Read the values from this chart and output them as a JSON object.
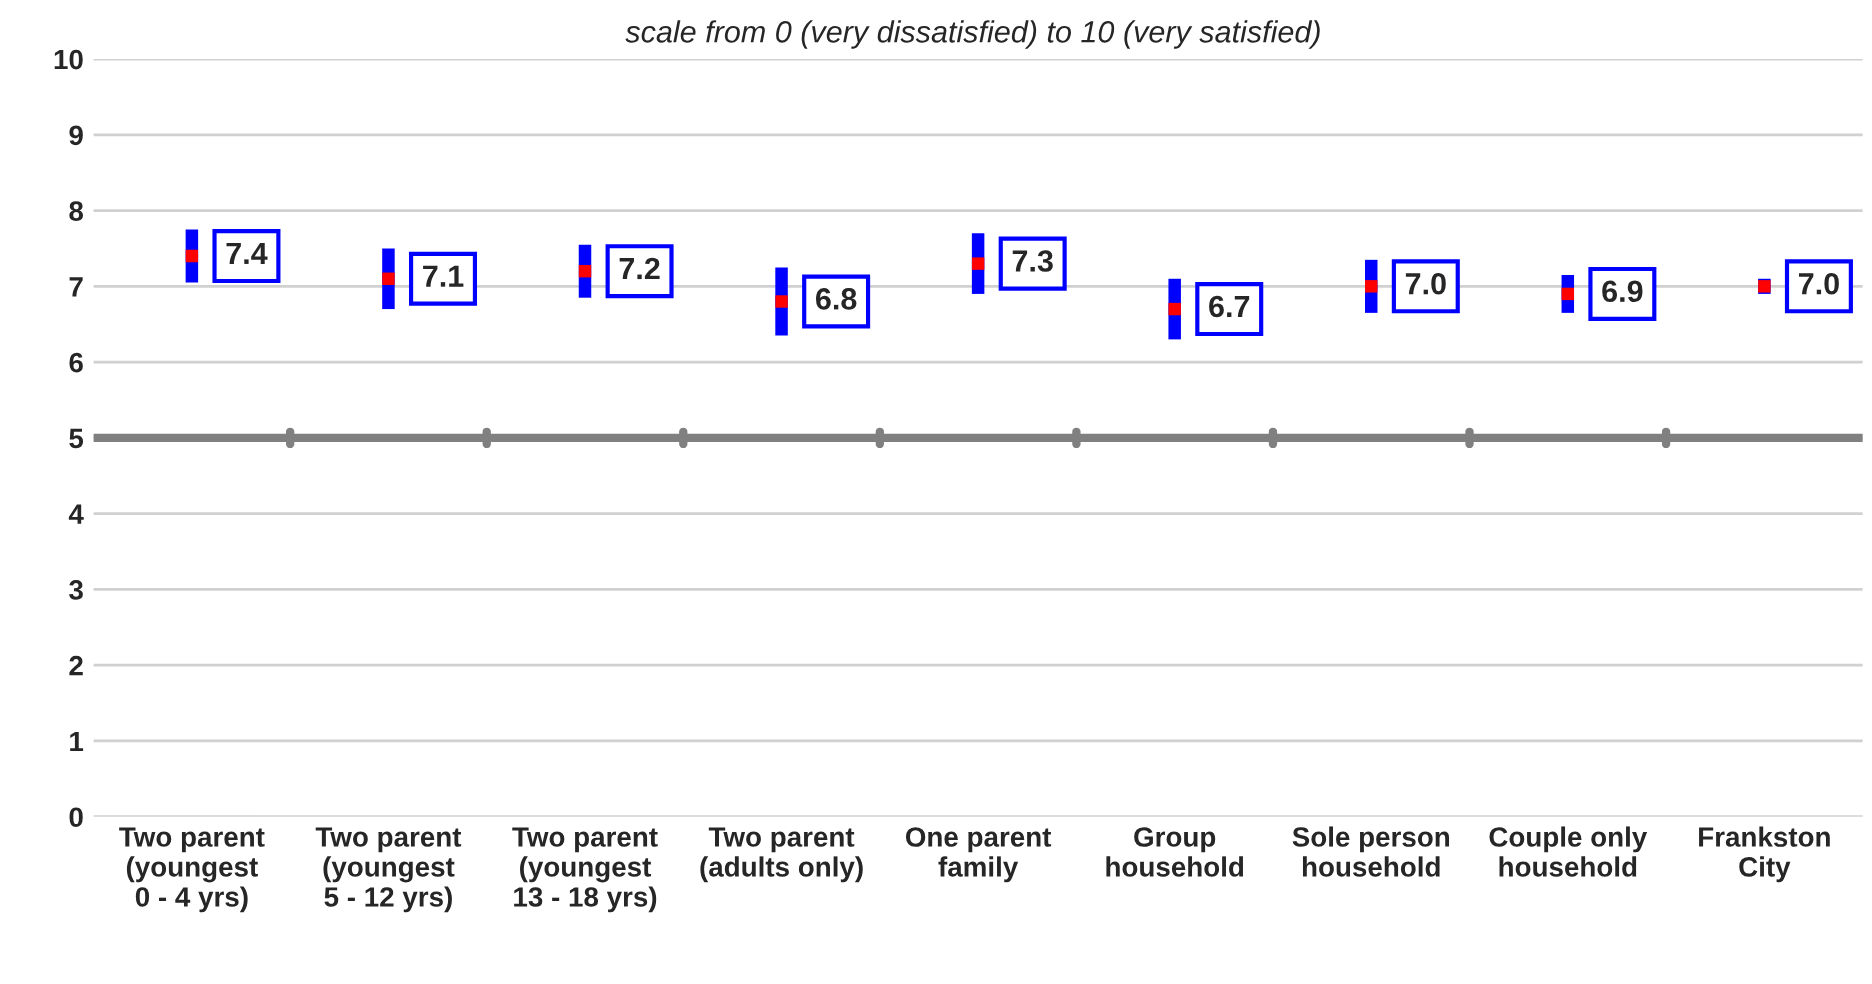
{
  "chart_data": {
    "type": "scatter",
    "subtitle": "scale from 0 (very dissatisfied) to 10 (very satisfied)",
    "categories": [
      "Two parent\n(youngest\n0 - 4 yrs)",
      "Two parent\n(youngest\n5 - 12 yrs)",
      "Two parent\n(youngest\n13 - 18 yrs)",
      "Two parent\n(adults only)",
      "One parent\nfamily",
      "Group\nhousehold",
      "Sole person\nhousehold",
      "Couple only\nhousehold",
      "Frankston\nCity"
    ],
    "series": [
      {
        "color": "#ff0000",
        "values": [
          7.4,
          7.1,
          7.2,
          6.8,
          7.3,
          6.7,
          7.0,
          6.9,
          7.0
        ],
        "errors": [
          0.35,
          0.4,
          0.35,
          0.45,
          0.4,
          0.4,
          0.35,
          0.25,
          0.1
        ],
        "value_labels": [
          "7.4",
          "7.1",
          "7.2",
          "6.8",
          "7.3",
          "6.7",
          "7.0",
          "6.9",
          "7.0"
        ]
      }
    ],
    "marker": "square",
    "ylim": [
      0,
      10
    ],
    "yticks": [
      0,
      1,
      2,
      3,
      4,
      5,
      6,
      7,
      8,
      9,
      10
    ],
    "grid": "y",
    "ref_lines": [
      {
        "axis": "y",
        "value": 5,
        "color": "#808080"
      }
    ]
  }
}
